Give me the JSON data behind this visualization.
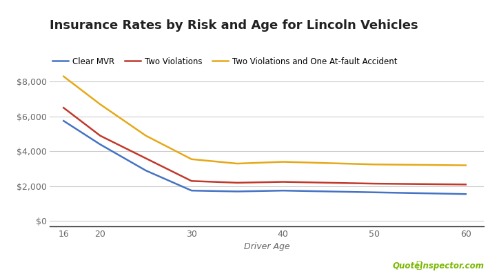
{
  "title": "Insurance Rates by Risk and Age for Lincoln Vehicles",
  "xlabel": "Driver Age",
  "ages": [
    16,
    20,
    25,
    30,
    35,
    40,
    50,
    60
  ],
  "clear_mvr": [
    5750,
    4400,
    2900,
    1750,
    1700,
    1750,
    1650,
    1550
  ],
  "two_violations": [
    6500,
    4900,
    3600,
    2300,
    2200,
    2250,
    2150,
    2100
  ],
  "two_viol_accident": [
    8300,
    6700,
    4900,
    3550,
    3300,
    3400,
    3250,
    3200
  ],
  "color_clear": "#4472C4",
  "color_two_viol": "#C0392B",
  "color_two_viol_acc": "#E6A817",
  "legend_labels": [
    "Clear MVR",
    "Two Violations",
    "Two Violations and One At-fault Accident"
  ],
  "yticks": [
    0,
    2000,
    4000,
    6000,
    8000
  ],
  "xticks": [
    16,
    20,
    30,
    40,
    50,
    60
  ],
  "ylim": [
    -300,
    9200
  ],
  "xlim": [
    14.5,
    62
  ],
  "background_color": "#ffffff",
  "grid_color": "#cccccc",
  "title_fontsize": 13,
  "label_fontsize": 9,
  "legend_fontsize": 8.5,
  "line_width": 1.8,
  "watermark_color_text": "#7ab800",
  "watermark_color_icon": "#7ab800"
}
